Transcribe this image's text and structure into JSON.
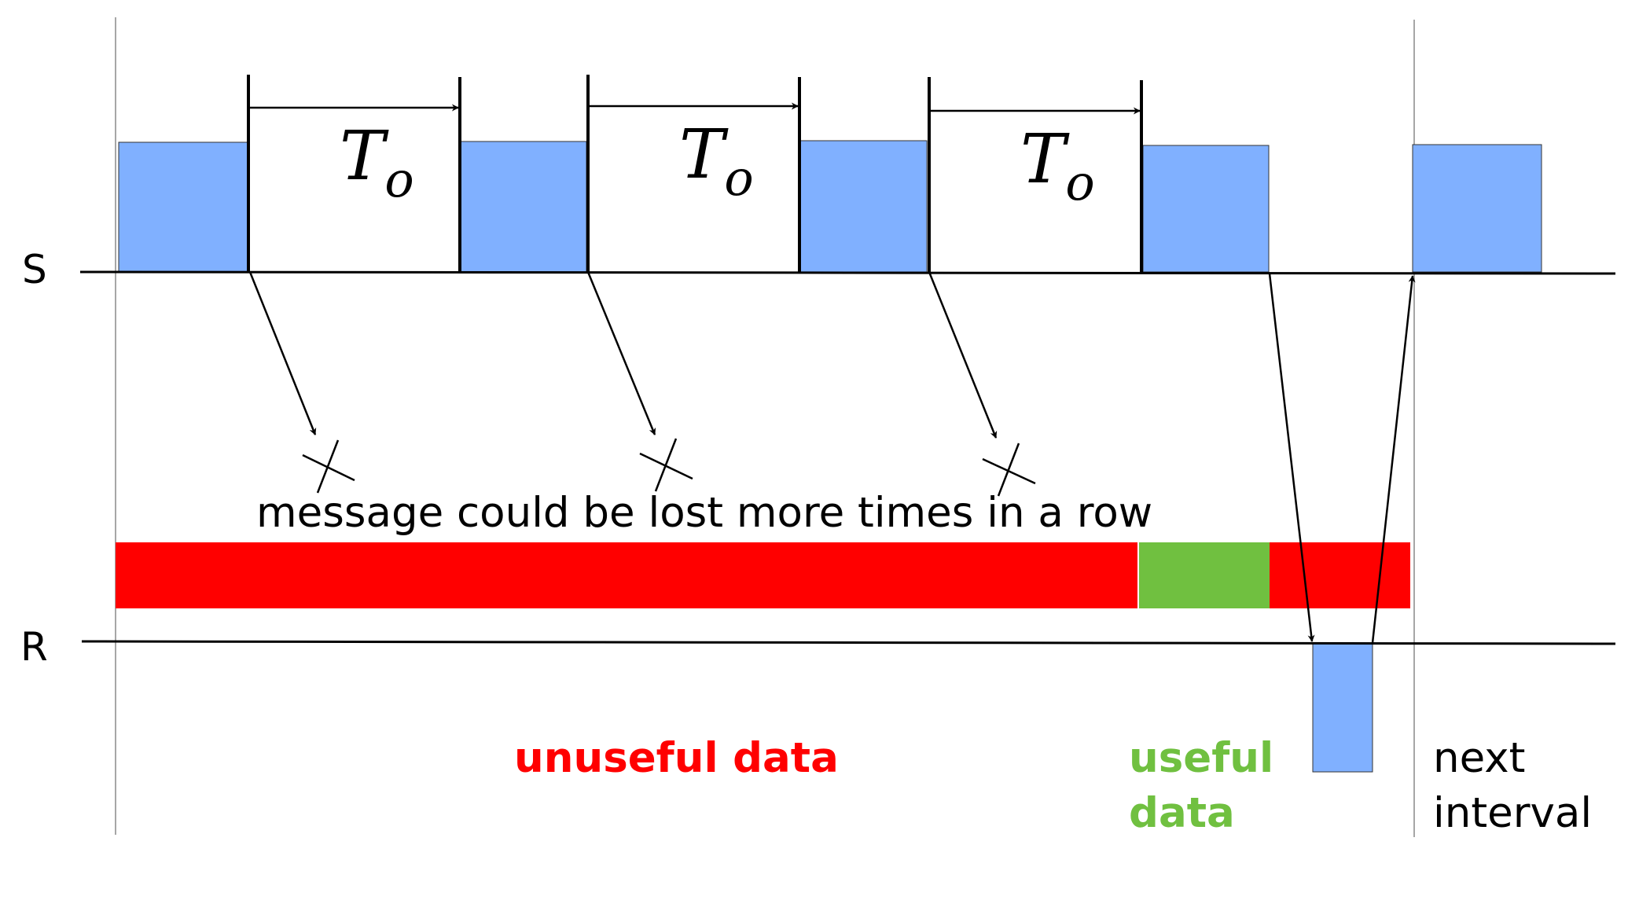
{
  "timelines": {
    "sender_label": "S",
    "receiver_label": "R"
  },
  "timeout": {
    "symbol": "T",
    "subscript": "o"
  },
  "annotations": {
    "loss_note": "message could be lost more times in a row",
    "unuseful": "unuseful data",
    "useful_line1": "useful",
    "useful_line2": "data",
    "next_line1": "next",
    "next_line2": "interval"
  },
  "colors": {
    "packet": "#80b0ff",
    "unuseful": "#ff0000",
    "useful": "#70c040",
    "line": "#000000"
  }
}
